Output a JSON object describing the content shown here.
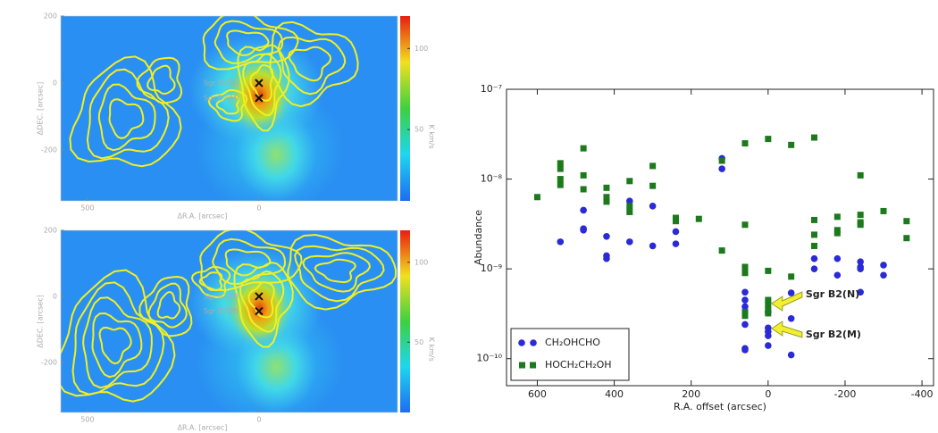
{
  "chart_data": [
    {
      "type": "map",
      "xlabel": "ΔR.A. [arcsec]",
      "ylabel": "ΔDEC. [arcsec]",
      "xlim": [
        578,
        -404
      ],
      "ylim": [
        -352,
        200
      ],
      "xticks": [
        500,
        0
      ],
      "yticks": [
        200,
        0,
        -200
      ],
      "colorbar": {
        "label": "K km/s",
        "lim": [
          6,
          120
        ],
        "ticks": [
          100,
          50
        ]
      },
      "annotations": [
        "Sgr B2(N)",
        "Sgr B2(M)"
      ]
    },
    {
      "type": "map",
      "xlabel": "ΔR.A. [arcsec]",
      "ylabel": "ΔDEC. [arcsec]",
      "xlim": [
        578,
        -404
      ],
      "ylim": [
        -352,
        200
      ],
      "xticks": [
        500,
        0
      ],
      "yticks": [
        200,
        0,
        -200
      ],
      "colorbar": {
        "label": "K km/s",
        "lim": [
          6,
          120
        ],
        "ticks": [
          100,
          50
        ]
      },
      "annotations": [
        "Sgr B2(N)",
        "Sgr B2(M)"
      ]
    },
    {
      "type": "scatter",
      "xlabel": "R.A. offset (arcsec)",
      "ylabel": "Abundance",
      "xlim": [
        680,
        -430
      ],
      "ylim": [
        5e-11,
        1e-07
      ],
      "yscale": "log",
      "xticks": [
        600,
        400,
        200,
        0,
        -200,
        -400
      ],
      "yticks": [
        {
          "value": 1e-10,
          "label": "10⁻¹⁰"
        },
        {
          "value": 1e-09,
          "label": "10⁻⁹"
        },
        {
          "value": 1e-08,
          "label": "10⁻⁸"
        },
        {
          "value": 1e-07,
          "label": "10⁻⁷"
        }
      ],
      "legend": "lower left",
      "series": [
        {
          "name": "CH₂OHCHO",
          "color": "#2a2ad6",
          "marker": "circle",
          "x": [
            540,
            480,
            480,
            480,
            420,
            420,
            420,
            360,
            360,
            300,
            300,
            240,
            240,
            120,
            120,
            60,
            60,
            60,
            60,
            60,
            60,
            0,
            0,
            0,
            0,
            0,
            -60,
            -60,
            -60,
            -120,
            -120,
            -180,
            -180,
            -240,
            -240,
            -240,
            -240,
            -300,
            -300
          ],
          "y": [
            2e-09,
            4.5e-09,
            2.8e-09,
            2.7e-09,
            2.3e-09,
            1.4e-09,
            1.3e-09,
            2e-09,
            5.7e-09,
            1.8e-09,
            5e-09,
            1.9e-09,
            2.6e-09,
            1.7e-08,
            1.3e-08,
            5.5e-10,
            4.5e-10,
            3.8e-10,
            2.4e-10,
            1.3e-10,
            1.25e-10,
            3.3e-10,
            2.2e-10,
            2e-10,
            1.8e-10,
            1.4e-10,
            5.4e-10,
            2.8e-10,
            1.1e-10,
            1.3e-09,
            1e-09,
            1.3e-09,
            8.5e-10,
            1.2e-09,
            1.05e-09,
            1e-09,
            5.5e-10,
            1.1e-09,
            8.5e-10
          ]
        },
        {
          "name": "HOCH₂CH₂OH",
          "color": "#1c7a1c",
          "marker": "square",
          "x": [
            600,
            540,
            540,
            540,
            540,
            480,
            480,
            480,
            420,
            420,
            420,
            360,
            360,
            360,
            300,
            300,
            240,
            240,
            180,
            120,
            120,
            60,
            60,
            60,
            60,
            60,
            60,
            0,
            0,
            0,
            0,
            0,
            0,
            -60,
            -60,
            -120,
            -120,
            -120,
            -120,
            -180,
            -180,
            -180,
            -240,
            -240,
            -240,
            -240,
            -300,
            -360,
            -360
          ],
          "y": [
            6.3e-09,
            1.5e-08,
            1.3e-08,
            1e-08,
            8.6e-09,
            2.2e-08,
            1.1e-08,
            7.7e-09,
            8e-09,
            6.3e-09,
            5.6e-09,
            9.5e-09,
            5e-09,
            4.3e-09,
            1.4e-08,
            8.4e-09,
            3.7e-09,
            3.4e-09,
            3.6e-09,
            1.6e-08,
            1.6e-09,
            2.5e-08,
            3.1e-09,
            1.05e-09,
            9e-10,
            3.3e-10,
            3e-10,
            2.8e-08,
            9.5e-10,
            4.5e-10,
            4e-10,
            3.5e-10,
            3.2e-10,
            2.4e-08,
            8.2e-10,
            2.9e-08,
            3.5e-09,
            2.4e-09,
            1.8e-09,
            3.8e-09,
            2.7e-09,
            2.5e-09,
            1.1e-08,
            4e-09,
            3.3e-09,
            3.1e-09,
            4.4e-09,
            3.4e-09,
            2.2e-09
          ]
        }
      ],
      "annotations": [
        "Sgr B2(N)",
        "Sgr B2(M)"
      ]
    }
  ]
}
